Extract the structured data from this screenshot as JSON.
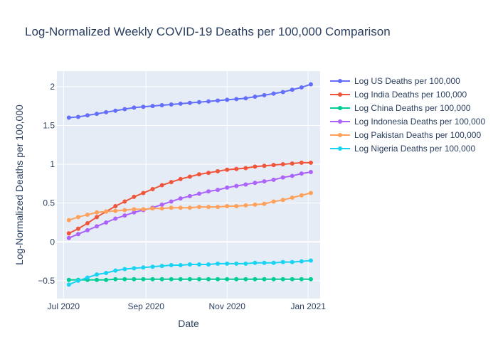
{
  "chart_data": {
    "type": "line",
    "title": "Log-Normalized Weekly COVID-19 Deaths per 100,000 Comparison",
    "xlabel": "Date",
    "ylabel": "Log-Normalized Deaths per 100,000",
    "x": [
      "2020-07-05",
      "2020-07-12",
      "2020-07-19",
      "2020-07-26",
      "2020-08-02",
      "2020-08-09",
      "2020-08-16",
      "2020-08-23",
      "2020-08-30",
      "2020-09-06",
      "2020-09-13",
      "2020-09-20",
      "2020-09-27",
      "2020-10-04",
      "2020-10-11",
      "2020-10-18",
      "2020-10-25",
      "2020-11-01",
      "2020-11-08",
      "2020-11-15",
      "2020-11-22",
      "2020-11-29",
      "2020-12-06",
      "2020-12-13",
      "2020-12-20",
      "2020-12-27",
      "2021-01-03"
    ],
    "xlim": [
      "2020-06-26",
      "2021-01-10"
    ],
    "ylim": [
      -0.73,
      2.2
    ],
    "x_ticks": [
      {
        "date": "2020-07-01",
        "label": "Jul 2020"
      },
      {
        "date": "2020-09-01",
        "label": "Sep 2020"
      },
      {
        "date": "2020-11-01",
        "label": "Nov 2020"
      },
      {
        "date": "2021-01-01",
        "label": "Jan 2021"
      }
    ],
    "y_ticks": [
      {
        "value": -0.5,
        "label": "−0.5"
      },
      {
        "value": 0,
        "label": "0"
      },
      {
        "value": 0.5,
        "label": "0.5"
      },
      {
        "value": 1,
        "label": "1"
      },
      {
        "value": 1.5,
        "label": "1.5"
      },
      {
        "value": 2,
        "label": "2"
      }
    ],
    "grid": true,
    "legend_position": "right",
    "plot_background": "#e5ecf6",
    "series": [
      {
        "name": "Log US Deaths per 100,000",
        "color": "#636efa",
        "values": [
          1.6,
          1.61,
          1.63,
          1.65,
          1.67,
          1.69,
          1.71,
          1.73,
          1.74,
          1.75,
          1.76,
          1.77,
          1.78,
          1.79,
          1.8,
          1.81,
          1.82,
          1.83,
          1.84,
          1.85,
          1.87,
          1.89,
          1.91,
          1.93,
          1.96,
          1.99,
          2.03
        ]
      },
      {
        "name": "Log India Deaths per 100,000",
        "color": "#ef553b",
        "values": [
          0.11,
          0.17,
          0.24,
          0.32,
          0.39,
          0.46,
          0.52,
          0.58,
          0.63,
          0.68,
          0.73,
          0.77,
          0.81,
          0.84,
          0.87,
          0.89,
          0.91,
          0.93,
          0.94,
          0.95,
          0.97,
          0.98,
          0.99,
          1.0,
          1.01,
          1.02,
          1.02
        ]
      },
      {
        "name": "Log China Deaths per 100,000",
        "color": "#00cc96",
        "values": [
          -0.49,
          -0.49,
          -0.49,
          -0.49,
          -0.49,
          -0.48,
          -0.48,
          -0.48,
          -0.48,
          -0.48,
          -0.48,
          -0.48,
          -0.48,
          -0.48,
          -0.48,
          -0.48,
          -0.48,
          -0.48,
          -0.48,
          -0.48,
          -0.48,
          -0.48,
          -0.48,
          -0.48,
          -0.48,
          -0.48,
          -0.48
        ]
      },
      {
        "name": "Log Indonesia Deaths per 100,000",
        "color": "#ab63fa",
        "values": [
          0.05,
          0.1,
          0.15,
          0.2,
          0.25,
          0.3,
          0.34,
          0.38,
          0.41,
          0.44,
          0.48,
          0.52,
          0.56,
          0.59,
          0.62,
          0.65,
          0.67,
          0.7,
          0.72,
          0.74,
          0.76,
          0.78,
          0.8,
          0.83,
          0.85,
          0.88,
          0.9
        ]
      },
      {
        "name": "Log Pakistan Deaths per 100,000",
        "color": "#ffa15a",
        "values": [
          0.28,
          0.32,
          0.35,
          0.38,
          0.39,
          0.4,
          0.41,
          0.42,
          0.42,
          0.43,
          0.43,
          0.44,
          0.44,
          0.44,
          0.45,
          0.45,
          0.45,
          0.46,
          0.46,
          0.47,
          0.48,
          0.49,
          0.52,
          0.54,
          0.57,
          0.6,
          0.63
        ]
      },
      {
        "name": "Log Nigeria Deaths per 100,000",
        "color": "#19d3f3",
        "values": [
          -0.55,
          -0.5,
          -0.46,
          -0.42,
          -0.4,
          -0.37,
          -0.35,
          -0.34,
          -0.33,
          -0.32,
          -0.31,
          -0.3,
          -0.3,
          -0.29,
          -0.29,
          -0.29,
          -0.28,
          -0.28,
          -0.28,
          -0.28,
          -0.27,
          -0.27,
          -0.27,
          -0.26,
          -0.26,
          -0.25,
          -0.24
        ]
      }
    ]
  }
}
